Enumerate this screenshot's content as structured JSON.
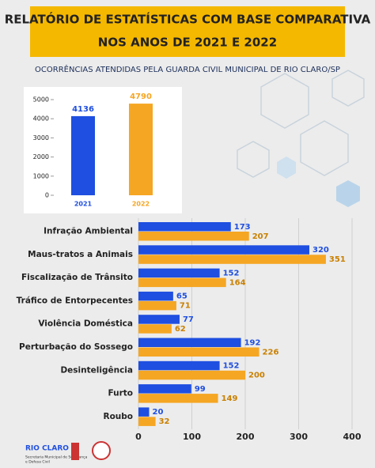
{
  "header": {
    "title_lines": [
      "RELATÓRIO DE ESTATÍSTICAS COM BASE COMPARATIVA",
      "NOS ANOS DE 2021 E 2022"
    ],
    "subtitle": "OCORRÊNCIAS ATENDIDAS PELA GUARDA CIVIL MUNICIPAL  DE RIO CLARO/SP"
  },
  "chart_data": [
    {
      "type": "bar",
      "categories": [
        "2021",
        "2022"
      ],
      "values": [
        4136,
        4790
      ],
      "colors": [
        "#1f4fe0",
        "#f5a623"
      ],
      "ylim": [
        0,
        5000
      ],
      "yticks": [
        0,
        1000,
        2000,
        3000,
        4000,
        5000
      ]
    },
    {
      "type": "hbar",
      "categories": [
        "Infração Ambiental",
        "Maus-tratos a Animais",
        "Fiscalização de Trânsito",
        "Tráfico de Entorpecentes",
        "Violência Doméstica",
        "Perturbação do Sossego",
        "Desinteligência",
        "Furto",
        "Roubo"
      ],
      "series": [
        {
          "color": "#1f4fe0",
          "values": [
            173,
            320,
            152,
            65,
            77,
            192,
            152,
            99,
            20
          ]
        },
        {
          "color": "#f5a623",
          "values": [
            207,
            351,
            164,
            71,
            62,
            226,
            200,
            149,
            32
          ]
        }
      ],
      "xlim": [
        0,
        400
      ],
      "xticks": [
        0,
        100,
        200,
        300,
        400
      ],
      "grid": true
    }
  ],
  "footer": {
    "logo": "RIO CLARO",
    "department": [
      "Secretaria Municipal de Segurança",
      "e Defesa Civil"
    ]
  }
}
